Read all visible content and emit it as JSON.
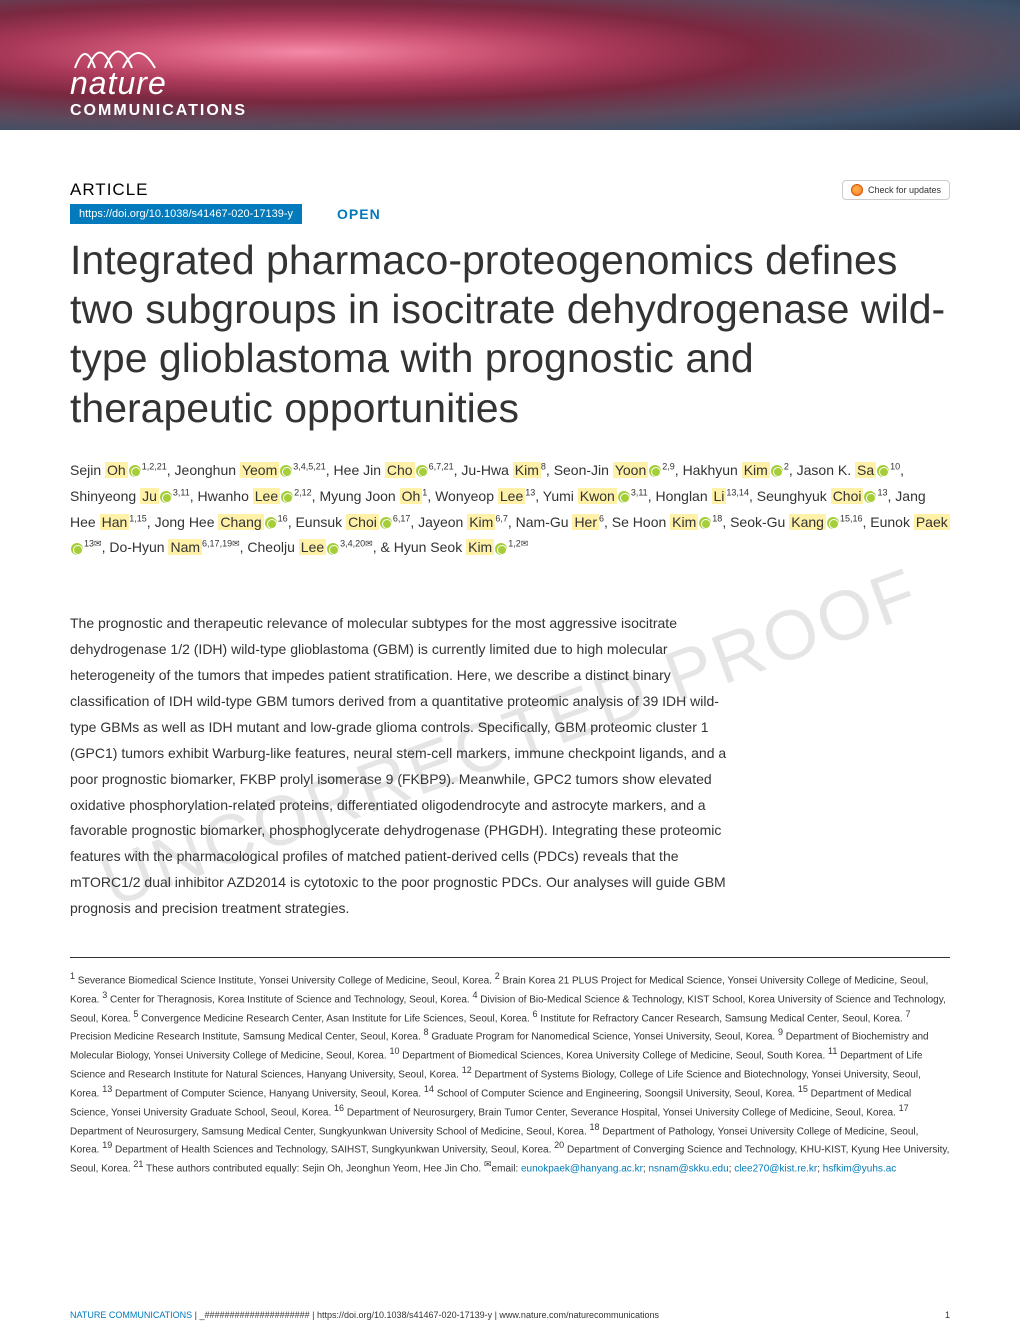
{
  "journal": {
    "name": "nature",
    "sub": "COMMUNICATIONS"
  },
  "header": {
    "article_label": "ARTICLE",
    "doi": "https://doi.org/10.1038/s41467-020-17139-y",
    "open": "OPEN",
    "updates": "Check for updates"
  },
  "title": "Integrated pharmaco-proteogenomics defines two subgroups in isocitrate dehydrogenase wild-type glioblastoma with prognostic and therapeutic opportunities",
  "authors": [
    {
      "first": "Sejin",
      "last": "Oh",
      "orcid": true,
      "sup": "1,2,21"
    },
    {
      "first": "Jeonghun",
      "last": "Yeom",
      "orcid": true,
      "sup": "3,4,5,21"
    },
    {
      "first": "Hee Jin",
      "last": "Cho",
      "orcid": true,
      "sup": "6,7,21"
    },
    {
      "first": "Ju-Hwa",
      "last": "Kim",
      "orcid": false,
      "sup": "8"
    },
    {
      "first": "Seon-Jin",
      "last": "Yoon",
      "orcid": true,
      "sup": "2,9"
    },
    {
      "first": "Hakhyun",
      "last": "Kim",
      "orcid": true,
      "sup": "2"
    },
    {
      "first": "Jason K.",
      "last": "Sa",
      "orcid": true,
      "sup": "10"
    },
    {
      "first": "Shinyeong",
      "last": "Ju",
      "orcid": true,
      "sup": "3,11"
    },
    {
      "first": "Hwanho",
      "last": "Lee",
      "orcid": true,
      "sup": "2,12"
    },
    {
      "first": "Myung Joon",
      "last": "Oh",
      "orcid": false,
      "sup": "1"
    },
    {
      "first": "Wonyeop",
      "last": "Lee",
      "orcid": false,
      "sup": "13"
    },
    {
      "first": "Yumi",
      "last": "Kwon",
      "orcid": true,
      "sup": "3,11"
    },
    {
      "first": "Honglan",
      "last": "Li",
      "orcid": false,
      "sup": "13,14"
    },
    {
      "first": "Seunghyuk",
      "last": "Choi",
      "orcid": true,
      "sup": "13"
    },
    {
      "first": "Jang Hee",
      "last": "Han",
      "orcid": false,
      "sup": "1,15"
    },
    {
      "first": "Jong Hee",
      "last": "Chang",
      "orcid": true,
      "sup": "16"
    },
    {
      "first": "Eunsuk",
      "last": "Choi",
      "orcid": true,
      "sup": "6,17"
    },
    {
      "first": "Jayeon",
      "last": "Kim",
      "orcid": false,
      "sup": "6,7"
    },
    {
      "first": "Nam-Gu",
      "last": "Her",
      "orcid": false,
      "sup": "6"
    },
    {
      "first": "Se Hoon",
      "last": "Kim",
      "orcid": true,
      "sup": "18"
    },
    {
      "first": "Seok-Gu",
      "last": "Kang",
      "orcid": true,
      "sup": "15,16"
    },
    {
      "first": "Eunok",
      "last": "Paek",
      "orcid": true,
      "sup": "13✉"
    },
    {
      "first": "Do-Hyun",
      "last": "Nam",
      "orcid": false,
      "sup": "6,17,19✉"
    },
    {
      "first": "Cheolju",
      "last": "Lee",
      "orcid": true,
      "sup": "3,4,20✉"
    },
    {
      "first": "Hyun Seok",
      "last": "Kim",
      "orcid": true,
      "sup": "1,2✉",
      "amp": true
    }
  ],
  "abstract": "The prognostic and therapeutic relevance of molecular subtypes for the most aggressive isocitrate dehydrogenase 1/2 (IDH) wild-type glioblastoma (GBM) is currently limited due to high molecular heterogeneity of the tumors that impedes patient stratification. Here, we describe a distinct binary classification of IDH wild-type GBM tumors derived from a quantitative proteomic analysis of 39 IDH wild-type GBMs as well as IDH mutant and low-grade glioma controls. Specifically, GBM proteomic cluster 1 (GPC1) tumors exhibit Warburg-like features, neural stem-cell markers, immune checkpoint ligands, and a poor prognostic biomarker, FKBP prolyl isomerase 9 (FKBP9). Meanwhile, GPC2 tumors show elevated oxidative phosphorylation-related proteins, differentiated oligodendrocyte and astrocyte markers, and a favorable prognostic biomarker, phosphoglycerate dehydrogenase (PHGDH). Integrating these proteomic features with the pharmacological profiles of matched patient-derived cells (PDCs) reveals that the mTORC1/2 dual inhibitor AZD2014 is cytotoxic to the poor prognostic PDCs. Our analyses will guide GBM prognosis and precision treatment strategies.",
  "affiliations_parts": [
    {
      "sup": "1",
      "text": "Severance Biomedical Science Institute, Yonsei University College of Medicine, Seoul, Korea. "
    },
    {
      "sup": "2",
      "text": "Brain Korea 21 PLUS Project for Medical Science, Yonsei University College of Medicine, Seoul, Korea. "
    },
    {
      "sup": "3",
      "text": "Center for Theragnosis, Korea Institute of Science and Technology, Seoul, Korea. "
    },
    {
      "sup": "4",
      "text": "Division of Bio-Medical Science & Technology, KIST School, Korea University of Science and Technology, Seoul, Korea. "
    },
    {
      "sup": "5",
      "text": "Convergence Medicine Research Center, Asan Institute for Life Sciences, Seoul, Korea. "
    },
    {
      "sup": "6",
      "text": "Institute for Refractory Cancer Research, Samsung Medical Center, Seoul, Korea. "
    },
    {
      "sup": "7",
      "text": "Precision Medicine Research Institute, Samsung Medical Center, Seoul, Korea. "
    },
    {
      "sup": "8",
      "text": "Graduate Program for Nanomedical Science, Yonsei University, Seoul, Korea. "
    },
    {
      "sup": "9",
      "text": "Department of Biochemistry and Molecular Biology, Yonsei University College of Medicine, Seoul, Korea. "
    },
    {
      "sup": "10",
      "text": "Department of Biomedical Sciences, Korea University College of Medicine, Seoul, South Korea. "
    },
    {
      "sup": "11",
      "text": "Department of Life Science and Research Institute for Natural Sciences, Hanyang University, Seoul, Korea. "
    },
    {
      "sup": "12",
      "text": "Department of Systems Biology, College of Life Science and Biotechnology, Yonsei University, Seoul, Korea. "
    },
    {
      "sup": "13",
      "text": "Department of Computer Science, Hanyang University, Seoul, Korea. "
    },
    {
      "sup": "14",
      "text": "School of Computer Science and Engineering, Soongsil University, Seoul, Korea. "
    },
    {
      "sup": "15",
      "text": "Department of Medical Science, Yonsei University Graduate School, Seoul, Korea. "
    },
    {
      "sup": "16",
      "text": "Department of Neurosurgery, Brain Tumor Center, Severance Hospital, Yonsei University College of Medicine, Seoul, Korea. "
    },
    {
      "sup": "17",
      "text": "Department of Neurosurgery, Samsung Medical Center, Sungkyunkwan University School of Medicine, Seoul, Korea. "
    },
    {
      "sup": "18",
      "text": "Department of Pathology, Yonsei University College of Medicine, Seoul, Korea. "
    },
    {
      "sup": "19",
      "text": "Department of Health Sciences and Technology, SAIHST, Sungkyunkwan University, Seoul, Korea. "
    },
    {
      "sup": "20",
      "text": "Department of Converging Science and Technology, KHU-KIST, Kyung Hee University, Seoul, Korea. "
    },
    {
      "sup": "21",
      "text": "These authors contributed equally: Sejin Oh, Jeonghun Yeom, Hee Jin Cho. "
    }
  ],
  "emails_label": "✉email: ",
  "emails": [
    "eunokpaek@hanyang.ac.kr",
    "nsnam@skku.edu",
    "clee270@kist.re.kr",
    "hsfkim@yuhs.ac"
  ],
  "footer": {
    "journal": "NATURE COMMUNICATIONS",
    "citation": " | _##################### | https://doi.org/10.1038/s41467-020-17139-y | www.nature.com/naturecommunications",
    "page": "1"
  },
  "watermark": "UNCORRECTED PROOF",
  "colors": {
    "accent": "#027abb",
    "highlight": "#fff1a8",
    "orcid": "#a6ce39",
    "text": "#333333"
  }
}
